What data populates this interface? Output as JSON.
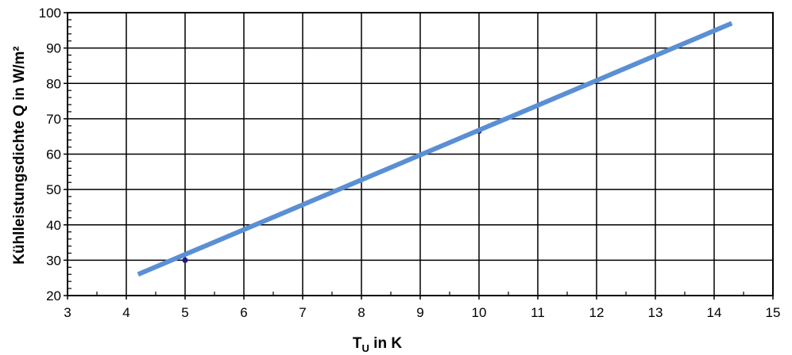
{
  "chart_data": {
    "type": "line",
    "title": "",
    "xlabel": {
      "main": "T",
      "sub": "U",
      "rest": " in K"
    },
    "ylabel": "Kühlleistungsdichte Q in W/m²",
    "xlim": [
      3,
      15
    ],
    "ylim": [
      20,
      100
    ],
    "xticks": [
      3,
      4,
      5,
      6,
      7,
      8,
      9,
      10,
      11,
      12,
      13,
      14,
      15
    ],
    "yticks": [
      20,
      30,
      40,
      50,
      60,
      70,
      80,
      90,
      100
    ],
    "grid": true,
    "series": [
      {
        "type": "line",
        "x": [
          4.2,
          14.3
        ],
        "y": [
          26,
          97
        ],
        "color": "#5b8fd4"
      },
      {
        "type": "scatter",
        "x": [
          5,
          10
        ],
        "y": [
          30,
          66.5
        ],
        "color": "#1a1a8a"
      }
    ]
  }
}
